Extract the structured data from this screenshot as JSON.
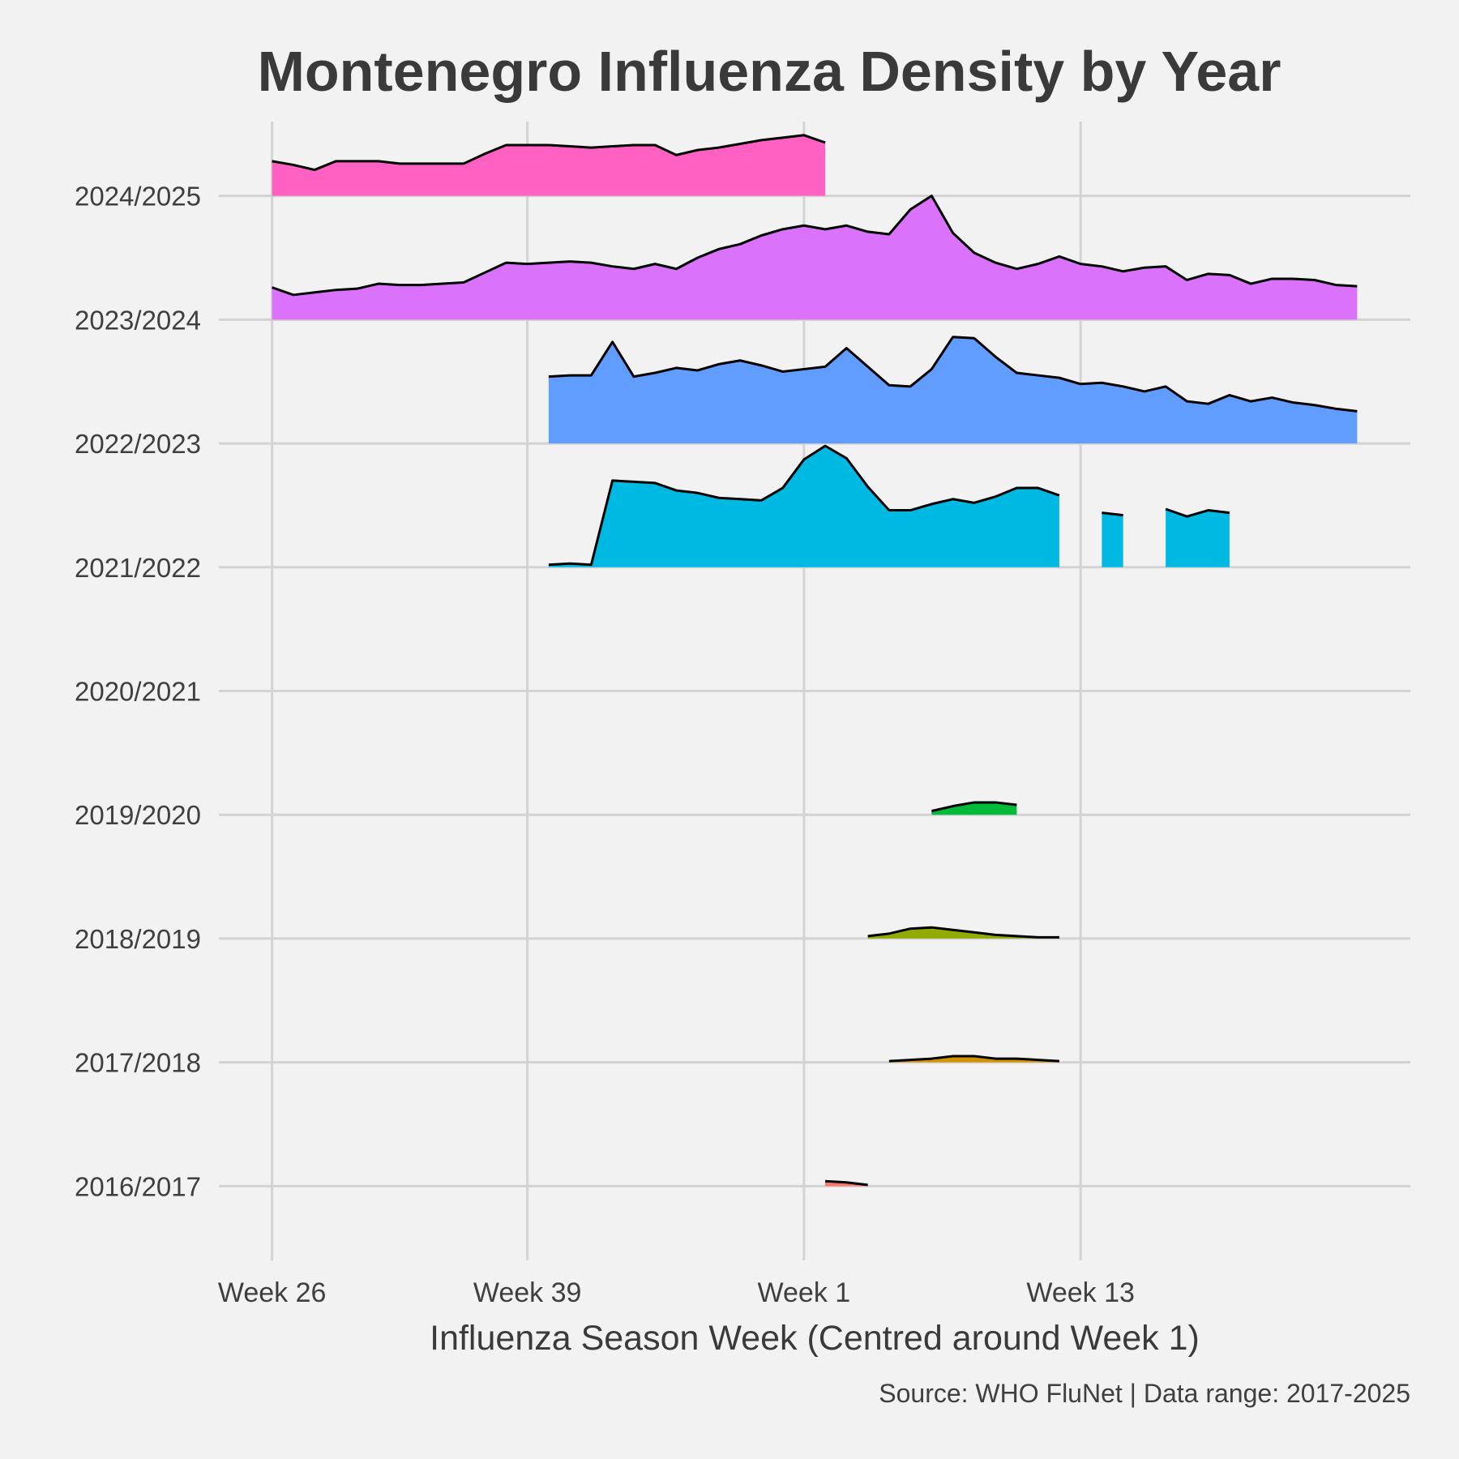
{
  "chart_data": {
    "type": "area",
    "title": "Montenegro Influenza Density by Year",
    "xlabel": "Influenza Season Week (Centred around Week 1)",
    "caption": "Source: WHO FluNet | Data range: 2017-2025",
    "x_axis": {
      "unit": "season week offset (0 = Week 26)",
      "range": [
        -2.5,
        53.5
      ],
      "ticks": [
        {
          "pos": 0,
          "label": "Week 26"
        },
        {
          "pos": 12,
          "label": "Week 39"
        },
        {
          "pos": 25,
          "label": "Week 1"
        },
        {
          "pos": 38,
          "label": "Week 13"
        }
      ]
    },
    "y_axis": {
      "categories": [
        "2016/2017",
        "2017/2018",
        "2018/2019",
        "2019/2020",
        "2020/2021",
        "2021/2022",
        "2022/2023",
        "2023/2024",
        "2024/2025"
      ],
      "range": [
        -0.6,
        8.6
      ]
    },
    "grid": true,
    "legend": "none",
    "series": [
      {
        "label": "2016/2017",
        "color": "#F8766D",
        "segments": [
          [
            [
              26,
              0.04
            ],
            [
              27,
              0.03
            ],
            [
              28,
              0.01
            ]
          ]
        ]
      },
      {
        "label": "2017/2018",
        "color": "#D39200",
        "segments": [
          [
            [
              29,
              0.01
            ],
            [
              30,
              0.02
            ],
            [
              31,
              0.03
            ],
            [
              32,
              0.05
            ],
            [
              33,
              0.05
            ],
            [
              34,
              0.03
            ],
            [
              35,
              0.03
            ],
            [
              36,
              0.02
            ],
            [
              37,
              0.01
            ]
          ]
        ]
      },
      {
        "label": "2018/2019",
        "color": "#93AA00",
        "segments": [
          [
            [
              28,
              0.02
            ],
            [
              29,
              0.04
            ],
            [
              30,
              0.08
            ],
            [
              31,
              0.09
            ],
            [
              32,
              0.07
            ],
            [
              33,
              0.05
            ],
            [
              34,
              0.03
            ],
            [
              35,
              0.02
            ],
            [
              36,
              0.01
            ],
            [
              37,
              0.01
            ]
          ]
        ]
      },
      {
        "label": "2019/2020",
        "color": "#00BA38",
        "segments": [
          [
            [
              31,
              0.03
            ],
            [
              32,
              0.07
            ],
            [
              33,
              0.1
            ],
            [
              34,
              0.1
            ],
            [
              35,
              0.08
            ]
          ]
        ]
      },
      {
        "label": "2020/2021",
        "color": "#00C19F",
        "segments": []
      },
      {
        "label": "2021/2022",
        "color": "#00B9E3",
        "segments": [
          [
            [
              13,
              0.02
            ],
            [
              14,
              0.03
            ],
            [
              15,
              0.02
            ],
            [
              16,
              0.7
            ],
            [
              17,
              0.69
            ],
            [
              18,
              0.68
            ],
            [
              19,
              0.62
            ],
            [
              20,
              0.6
            ],
            [
              21,
              0.56
            ],
            [
              22,
              0.55
            ],
            [
              23,
              0.54
            ],
            [
              24,
              0.64
            ],
            [
              25,
              0.87
            ],
            [
              26,
              0.98
            ],
            [
              27,
              0.88
            ],
            [
              28,
              0.65
            ],
            [
              29,
              0.46
            ],
            [
              30,
              0.46
            ],
            [
              31,
              0.51
            ],
            [
              32,
              0.55
            ],
            [
              33,
              0.52
            ],
            [
              34,
              0.57
            ],
            [
              35,
              0.64
            ],
            [
              36,
              0.64
            ],
            [
              37,
              0.58
            ]
          ],
          [
            [
              39,
              0.44
            ],
            [
              40,
              0.42
            ]
          ],
          [
            [
              42,
              0.47
            ],
            [
              43,
              0.41
            ],
            [
              44,
              0.46
            ],
            [
              45,
              0.44
            ]
          ]
        ]
      },
      {
        "label": "2022/2023",
        "color": "#619CFF",
        "segments": [
          [
            [
              13,
              0.54
            ],
            [
              14,
              0.55
            ],
            [
              15,
              0.55
            ],
            [
              16,
              0.82
            ],
            [
              17,
              0.54
            ],
            [
              18,
              0.57
            ],
            [
              19,
              0.61
            ],
            [
              20,
              0.59
            ],
            [
              21,
              0.64
            ],
            [
              22,
              0.67
            ],
            [
              23,
              0.63
            ],
            [
              24,
              0.58
            ],
            [
              25,
              0.6
            ],
            [
              26,
              0.62
            ],
            [
              27,
              0.77
            ],
            [
              28,
              0.62
            ],
            [
              29,
              0.47
            ],
            [
              30,
              0.46
            ],
            [
              31,
              0.6
            ],
            [
              32,
              0.86
            ],
            [
              33,
              0.85
            ],
            [
              34,
              0.7
            ],
            [
              35,
              0.57
            ],
            [
              36,
              0.55
            ],
            [
              37,
              0.53
            ],
            [
              38,
              0.48
            ],
            [
              39,
              0.49
            ],
            [
              40,
              0.46
            ],
            [
              41,
              0.42
            ],
            [
              42,
              0.46
            ],
            [
              43,
              0.34
            ],
            [
              44,
              0.32
            ],
            [
              45,
              0.39
            ],
            [
              46,
              0.34
            ],
            [
              47,
              0.37
            ],
            [
              48,
              0.33
            ],
            [
              49,
              0.31
            ],
            [
              50,
              0.28
            ],
            [
              51,
              0.26
            ]
          ]
        ]
      },
      {
        "label": "2023/2024",
        "color": "#DB72FB",
        "segments": [
          [
            [
              0,
              0.26
            ],
            [
              1,
              0.2
            ],
            [
              2,
              0.22
            ],
            [
              3,
              0.24
            ],
            [
              4,
              0.25
            ],
            [
              5,
              0.29
            ],
            [
              6,
              0.28
            ],
            [
              7,
              0.28
            ],
            [
              8,
              0.29
            ],
            [
              9,
              0.3
            ],
            [
              10,
              0.38
            ],
            [
              11,
              0.46
            ],
            [
              12,
              0.45
            ],
            [
              13,
              0.46
            ],
            [
              14,
              0.47
            ],
            [
              15,
              0.46
            ],
            [
              16,
              0.43
            ],
            [
              17,
              0.41
            ],
            [
              18,
              0.45
            ],
            [
              19,
              0.41
            ],
            [
              20,
              0.5
            ],
            [
              21,
              0.57
            ],
            [
              22,
              0.61
            ],
            [
              23,
              0.68
            ],
            [
              24,
              0.73
            ],
            [
              25,
              0.76
            ],
            [
              26,
              0.73
            ],
            [
              27,
              0.76
            ],
            [
              28,
              0.71
            ],
            [
              29,
              0.69
            ],
            [
              30,
              0.89
            ],
            [
              31,
              1.0
            ],
            [
              32,
              0.7
            ],
            [
              33,
              0.54
            ],
            [
              34,
              0.46
            ],
            [
              35,
              0.41
            ],
            [
              36,
              0.45
            ],
            [
              37,
              0.51
            ],
            [
              38,
              0.45
            ],
            [
              39,
              0.43
            ],
            [
              40,
              0.39
            ],
            [
              41,
              0.42
            ],
            [
              42,
              0.43
            ],
            [
              43,
              0.32
            ],
            [
              44,
              0.37
            ],
            [
              45,
              0.36
            ],
            [
              46,
              0.29
            ],
            [
              47,
              0.33
            ],
            [
              48,
              0.33
            ],
            [
              49,
              0.32
            ],
            [
              50,
              0.28
            ],
            [
              51,
              0.27
            ]
          ]
        ]
      },
      {
        "label": "2024/2025",
        "color": "#FF61C3",
        "segments": [
          [
            [
              0,
              0.28
            ],
            [
              1,
              0.25
            ],
            [
              2,
              0.21
            ],
            [
              3,
              0.28
            ],
            [
              4,
              0.28
            ],
            [
              5,
              0.28
            ],
            [
              6,
              0.26
            ],
            [
              7,
              0.26
            ],
            [
              8,
              0.26
            ],
            [
              9,
              0.26
            ],
            [
              10,
              0.34
            ],
            [
              11,
              0.41
            ],
            [
              12,
              0.41
            ],
            [
              13,
              0.41
            ],
            [
              14,
              0.4
            ],
            [
              15,
              0.39
            ],
            [
              16,
              0.4
            ],
            [
              17,
              0.41
            ],
            [
              18,
              0.41
            ],
            [
              19,
              0.33
            ],
            [
              20,
              0.37
            ],
            [
              21,
              0.39
            ],
            [
              22,
              0.42
            ],
            [
              23,
              0.45
            ],
            [
              24,
              0.47
            ],
            [
              25,
              0.49
            ],
            [
              26,
              0.43
            ]
          ]
        ]
      }
    ]
  }
}
